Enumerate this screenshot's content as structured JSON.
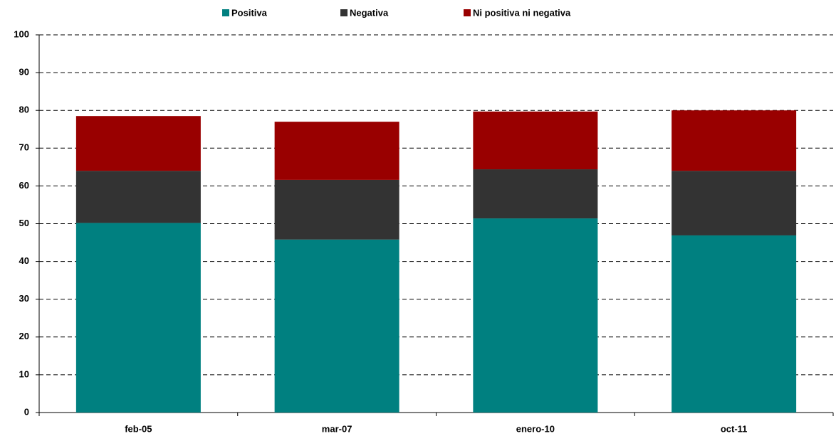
{
  "chart_data": {
    "type": "stacked_bar",
    "categories": [
      "feb-05",
      "mar-07",
      "enero-10",
      "oct-11"
    ],
    "series": [
      {
        "name": "Positiva",
        "color": "#008080",
        "values": [
          50.2,
          45.8,
          51.4,
          46.9
        ]
      },
      {
        "name": "Negativa",
        "color": "#333333",
        "values": [
          13.8,
          15.8,
          13.0,
          17.1
        ]
      },
      {
        "name": "Ni positiva ni negativa",
        "color": "#990000",
        "values": [
          14.5,
          15.4,
          15.3,
          16.0
        ]
      }
    ],
    "ylim": [
      0,
      100
    ],
    "yticks": [
      0,
      10,
      20,
      30,
      40,
      50,
      60,
      70,
      80,
      90,
      100
    ],
    "grid": true
  }
}
